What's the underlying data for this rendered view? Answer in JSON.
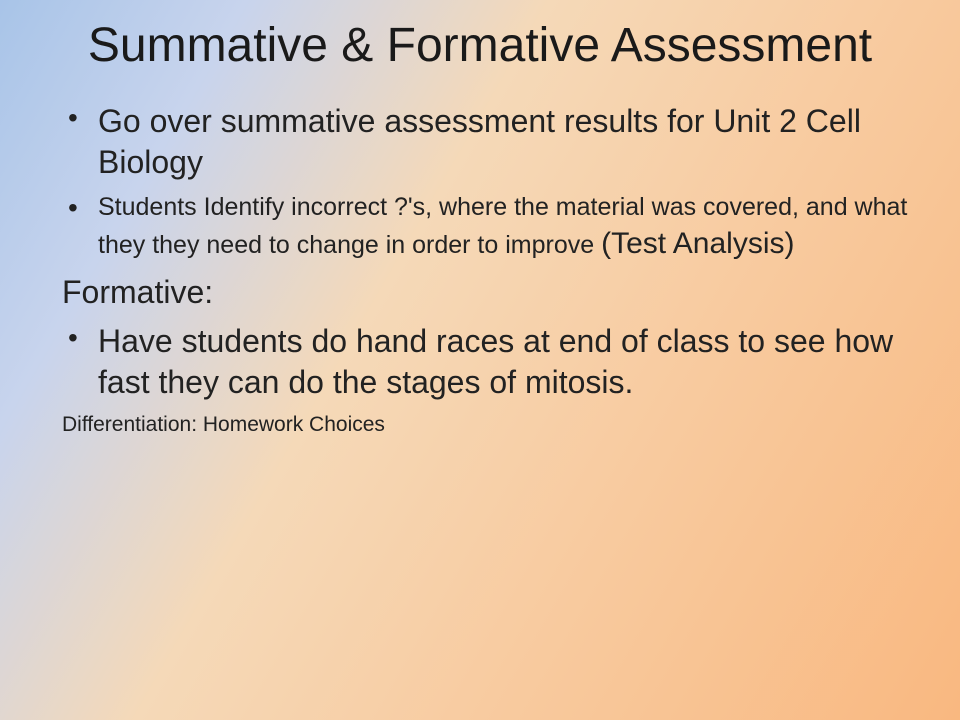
{
  "slide": {
    "title": "Summative & Formative Assessment",
    "bullets": {
      "b1": "Go over summative assessment results for Unit 2 Cell Biology",
      "b2_pre": "Students Identify incorrect ?'s, where the material was covered, and what they they need to change in order to improve ",
      "b2_emph": "(Test Analysis)",
      "subhead": "Formative:",
      "b3": "Have students do hand races at end of class to see how fast they can do the stages of mitosis.",
      "footnote": "Differentiation: Homework Choices"
    }
  },
  "style": {
    "background_gradient": [
      "#a8c4e8",
      "#c8d4ed",
      "#f5d9b8",
      "#f8cba0",
      "#f9b880"
    ],
    "title_fontsize": 48,
    "body_large_fontsize": 32,
    "body_small_fontsize": 25,
    "footnote_fontsize": 21,
    "text_color": "#222222",
    "font_family": "Arial"
  }
}
